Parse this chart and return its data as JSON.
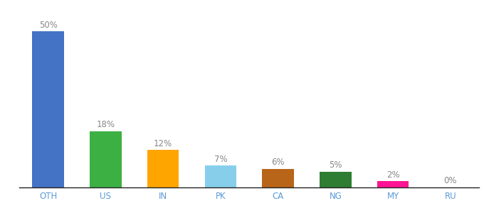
{
  "categories": [
    "OTH",
    "US",
    "IN",
    "PK",
    "CA",
    "NG",
    "MY",
    "RU"
  ],
  "values": [
    50,
    18,
    12,
    7,
    6,
    5,
    2,
    0
  ],
  "bar_colors": [
    "#4472C4",
    "#3CB043",
    "#FFA500",
    "#87CEEB",
    "#B8651A",
    "#2E7D32",
    "#FF1493",
    "#4472C4"
  ],
  "label_color": "#888888",
  "axis_label_color": "#5B9BD5",
  "background_color": "#FFFFFF",
  "ylim": [
    0,
    58
  ],
  "bar_width": 0.55,
  "label_fontsize": 8.5,
  "tick_fontsize": 8.5,
  "fig_width": 6.8,
  "fig_height": 3.0,
  "dpi": 100
}
